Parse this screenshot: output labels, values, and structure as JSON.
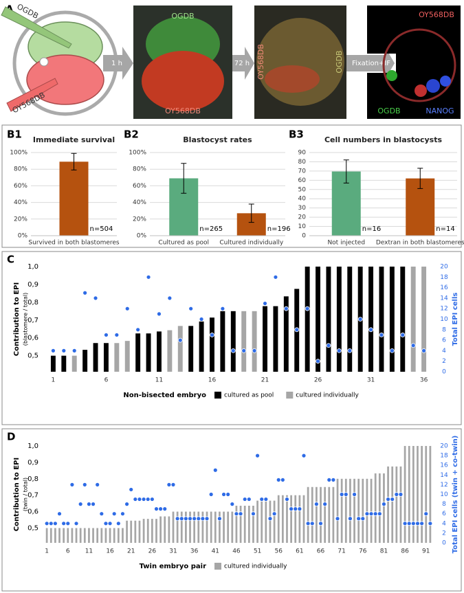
{
  "panel_a": {
    "label": "A",
    "zygote_labels": [
      "OGDB",
      "OY568DB"
    ],
    "arrows": [
      "1 h",
      "72 h",
      "Fixation+IF"
    ],
    "images": [
      {
        "top": "OGDB",
        "bottom": "OY568DB"
      },
      {
        "left": "OY568DB",
        "right": "OGDB"
      },
      {
        "top": "OY568DB",
        "bottom_left": "OGDB",
        "bottom_right": "NANOG"
      }
    ]
  },
  "chart_data": [
    {
      "type": "bar",
      "panel": "B1",
      "title": "Immediate survival",
      "categories": [
        "Survived in both blastomeres"
      ],
      "values": [
        89
      ],
      "errors": [
        10
      ],
      "colors": [
        "#b5520f"
      ],
      "annotations": [
        "n=504"
      ],
      "ylim": [
        0,
        100
      ],
      "yticks": [
        {
          "value": 0,
          "label": "0%"
        },
        {
          "value": 20,
          "label": "20%"
        },
        {
          "value": 40,
          "label": "40%"
        },
        {
          "value": 60,
          "label": "60%"
        },
        {
          "value": 80,
          "label": "80%"
        },
        {
          "value": 100,
          "label": "100%"
        }
      ]
    },
    {
      "type": "bar",
      "panel": "B2",
      "title": "Blastocyst rates",
      "categories": [
        "Cultured as pool",
        "Cultured individually"
      ],
      "values": [
        69,
        27
      ],
      "errors": [
        18,
        11
      ],
      "colors": [
        "#5aab7e",
        "#b5520f"
      ],
      "annotations": [
        "n=265",
        "n=196"
      ],
      "ylim": [
        0,
        100
      ],
      "yticks": [
        {
          "value": 0,
          "label": "0%"
        },
        {
          "value": 20,
          "label": "20%"
        },
        {
          "value": 40,
          "label": "40%"
        },
        {
          "value": 60,
          "label": "60%"
        },
        {
          "value": 80,
          "label": "80%"
        },
        {
          "value": 100,
          "label": "100%"
        }
      ]
    },
    {
      "type": "bar",
      "panel": "B3",
      "title": "Cell numbers in blastocysts",
      "categories": [
        "Not injected",
        "Dextran in both blastomeres"
      ],
      "values": [
        69.5,
        62
      ],
      "errors": [
        12.5,
        11
      ],
      "colors": [
        "#5aab7e",
        "#b5520f"
      ],
      "annotations": [
        "n=16",
        "n=14"
      ],
      "ylim": [
        0,
        90
      ],
      "yticks": [
        0,
        10,
        20,
        30,
        40,
        50,
        60,
        70,
        80,
        90
      ]
    },
    {
      "type": "combo",
      "panel": "C",
      "y_label": "Contribution to EPI",
      "y_sublabel": "(blastomere / total)",
      "y2_label": "Total EPI cells",
      "x_label": "Non-bisected embryo",
      "x": [
        1,
        2,
        3,
        4,
        5,
        6,
        7,
        8,
        9,
        10,
        11,
        12,
        13,
        14,
        15,
        16,
        17,
        18,
        19,
        20,
        21,
        22,
        23,
        24,
        25,
        26,
        27,
        28,
        29,
        30,
        31,
        32,
        33,
        34,
        35,
        36
      ],
      "xlim": [
        0,
        37
      ],
      "xticks": [
        1,
        6,
        11,
        16,
        21,
        26,
        31,
        36
      ],
      "series": [
        {
          "name": "cultured as pool",
          "color": "#000000",
          "values": [
            0.5,
            0.5,
            null,
            0.533,
            0.571,
            0.571,
            null,
            null,
            0.625,
            0.625,
            0.636,
            null,
            null,
            0.667,
            0.692,
            0.714,
            0.75,
            0.75,
            null,
            null,
            0.778,
            0.778,
            0.833,
            0.875,
            1.0,
            1.0,
            1.0,
            1.0,
            1.0,
            1.0,
            1.0,
            1.0,
            1.0,
            1.0,
            null,
            null
          ]
        },
        {
          "name": "cultured individually",
          "color": "#a6a6a6",
          "values": [
            null,
            null,
            0.5,
            null,
            null,
            null,
            0.571,
            0.583,
            null,
            null,
            null,
            0.643,
            0.667,
            null,
            null,
            null,
            null,
            null,
            0.75,
            0.75,
            null,
            null,
            null,
            null,
            null,
            null,
            null,
            null,
            null,
            null,
            null,
            null,
            null,
            null,
            1.0,
            1.0
          ]
        }
      ],
      "epi_cells": {
        "color": "#2e6be6",
        "axis": "y2",
        "values": [
          4,
          4,
          4,
          15,
          14,
          7,
          7,
          12,
          8,
          18,
          11,
          14,
          6,
          12,
          10,
          7,
          12,
          4,
          4,
          4,
          13,
          18,
          12,
          8,
          12,
          2,
          5,
          4,
          4,
          10,
          8,
          7,
          4,
          7,
          5,
          4
        ]
      },
      "ylim": [
        0.41,
        1.0
      ],
      "yticks": [
        {
          "value": 0.5,
          "label": "0,5"
        },
        {
          "value": 0.6,
          "label": "0,6"
        },
        {
          "value": 0.7,
          "label": "0,7"
        },
        {
          "value": 0.8,
          "label": "0,8"
        },
        {
          "value": 0.9,
          "label": "0,9"
        },
        {
          "value": 1.0,
          "label": "1,0"
        }
      ],
      "y2lim": [
        0,
        20
      ],
      "y2ticks": [
        0,
        2,
        4,
        6,
        8,
        10,
        12,
        14,
        16,
        18,
        20
      ]
    },
    {
      "type": "combo",
      "panel": "D",
      "y_label": "Contribution to EPI",
      "y_sublabel": "(twin / total)",
      "y2_label": "Total EPI cells (twin + co-twin)",
      "x_label": "Twin embryo pair",
      "x": [
        1,
        2,
        3,
        4,
        5,
        6,
        7,
        8,
        9,
        10,
        11,
        12,
        13,
        14,
        15,
        16,
        17,
        18,
        19,
        20,
        21,
        22,
        23,
        24,
        25,
        26,
        27,
        28,
        29,
        30,
        31,
        32,
        33,
        34,
        35,
        36,
        37,
        38,
        39,
        40,
        41,
        42,
        43,
        44,
        45,
        46,
        47,
        48,
        49,
        50,
        51,
        52,
        53,
        54,
        55,
        56,
        57,
        58,
        59,
        60,
        61,
        62,
        63,
        64,
        65,
        66,
        67,
        68,
        69,
        70,
        71,
        72,
        73,
        74,
        75,
        76,
        77,
        78,
        79,
        80,
        81,
        82,
        83,
        84,
        85,
        86,
        87,
        88,
        89,
        90,
        91,
        92
      ],
      "xlim": [
        0,
        93
      ],
      "xticks": [
        1,
        6,
        11,
        16,
        21,
        26,
        31,
        36,
        41,
        46,
        51,
        56,
        61,
        66,
        71,
        76,
        81,
        86,
        91
      ],
      "series": [
        {
          "name": "cultured individually",
          "color": "#a6a6a6",
          "values": [
            0.5,
            0.5,
            0.5,
            0.5,
            0.5,
            0.5,
            0.5,
            0.5,
            0.5,
            0.5,
            0.5,
            0.5,
            0.5,
            0.5,
            0.5,
            0.5,
            0.5,
            0.5,
            0.5,
            0.545,
            0.545,
            0.545,
            0.545,
            0.556,
            0.556,
            0.556,
            0.556,
            0.571,
            0.571,
            0.571,
            0.6,
            0.6,
            0.6,
            0.6,
            0.6,
            0.6,
            0.6,
            0.6,
            0.6,
            0.6,
            0.6,
            0.6,
            0.6,
            0.6,
            0.6,
            0.636,
            0.636,
            0.636,
            0.636,
            0.636,
            0.667,
            0.667,
            0.667,
            0.667,
            0.667,
            0.7,
            0.7,
            0.7,
            0.7,
            0.7,
            0.7,
            0.7,
            0.75,
            0.75,
            0.75,
            0.75,
            0.75,
            0.75,
            0.75,
            0.8,
            0.8,
            0.8,
            0.8,
            0.8,
            0.8,
            0.8,
            0.8,
            0.8,
            0.833,
            0.833,
            0.833,
            0.875,
            0.875,
            0.875,
            0.875,
            1.0,
            1.0,
            1.0,
            1.0,
            1.0,
            1.0,
            1.0
          ]
        }
      ],
      "epi_cells": {
        "color": "#2e6be6",
        "axis": "y2",
        "values": [
          4,
          4,
          4,
          6,
          4,
          4,
          12,
          4,
          8,
          12,
          8,
          8,
          12,
          6,
          4,
          4,
          6,
          4,
          6,
          8,
          11,
          9,
          9,
          9,
          9,
          9,
          7,
          7,
          7,
          12,
          12,
          5,
          5,
          5,
          5,
          5,
          5,
          5,
          5,
          10,
          15,
          5,
          10,
          10,
          8,
          6,
          6,
          9,
          9,
          6,
          18,
          9,
          9,
          5,
          6,
          13,
          13,
          9,
          7,
          7,
          7,
          18,
          4,
          4,
          8,
          4,
          8,
          13,
          13,
          5,
          10,
          10,
          5,
          10,
          5,
          5,
          6,
          6,
          6,
          6,
          8,
          9,
          9,
          10,
          10,
          4,
          4,
          4,
          4,
          4,
          6,
          4
        ]
      },
      "ylim": [
        0.41,
        1.0
      ],
      "yticks": [
        {
          "value": 0.5,
          "label": "0,5"
        },
        {
          "value": 0.6,
          "label": "0,6"
        },
        {
          "value": 0.7,
          "label": "0,7"
        },
        {
          "value": 0.8,
          "label": "0,8"
        },
        {
          "value": 0.9,
          "label": "0,9"
        },
        {
          "value": 1.0,
          "label": "1,0"
        }
      ],
      "y2lim": [
        0,
        20
      ],
      "y2ticks": [
        0,
        2,
        4,
        6,
        8,
        10,
        12,
        14,
        16,
        18,
        20
      ]
    }
  ]
}
